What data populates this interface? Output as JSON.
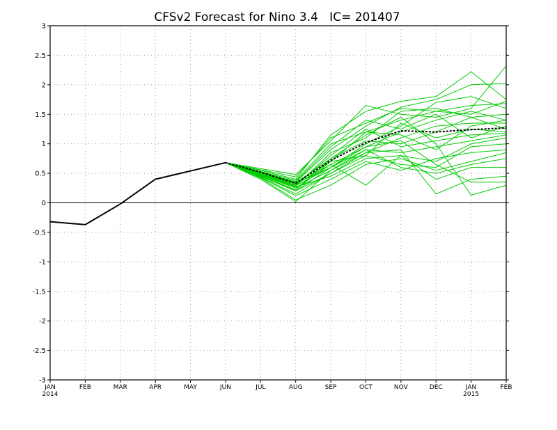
{
  "chart_data": {
    "type": "line",
    "title": "CFSv2 Forecast for Nino 3.4   IC= 201407",
    "xlabel": "",
    "ylabel": "",
    "categories": [
      "JAN",
      "FEB",
      "MAR",
      "APR",
      "MAY",
      "JUN",
      "JUL",
      "AUG",
      "SEP",
      "OCT",
      "NOV",
      "DEC",
      "JAN",
      "FEB"
    ],
    "year_labels": [
      {
        "index": 0,
        "label": "2014"
      },
      {
        "index": 12,
        "label": "2015"
      }
    ],
    "ylim": [
      -3,
      3
    ],
    "yticks": [
      "3",
      "2.5",
      "2",
      "1.5",
      "1",
      "0.5",
      "0",
      "-0.5",
      "-1",
      "-1.5",
      "-2",
      "-2.5",
      "-3"
    ],
    "ytick_values": [
      3,
      2.5,
      2,
      1.5,
      1,
      0.5,
      0,
      -0.5,
      -1,
      -1.5,
      -2,
      -2.5,
      -3
    ],
    "grid": true,
    "zero_line": true,
    "colors": {
      "observed": "#000000",
      "members": "#00cc00",
      "mean": "#000000",
      "grid": "#9a9a9a"
    },
    "observed": {
      "x": [
        0,
        1,
        2,
        3,
        4,
        5
      ],
      "values": [
        -0.32,
        -0.37,
        -0.02,
        0.4,
        0.54,
        0.68
      ]
    },
    "ensemble_mean": {
      "x": [
        5,
        6,
        7,
        8,
        9,
        10,
        11,
        12,
        13
      ],
      "values": [
        0.68,
        0.52,
        0.33,
        0.72,
        1.02,
        1.22,
        1.2,
        1.24,
        1.27
      ]
    },
    "ensemble_members": [
      {
        "x": [
          5,
          6,
          7,
          8,
          9,
          10,
          11,
          12,
          13
        ],
        "values": [
          0.68,
          0.55,
          0.4,
          1.15,
          1.55,
          1.72,
          1.8,
          2.22,
          1.75
        ]
      },
      {
        "x": [
          5,
          6,
          7,
          8,
          9,
          10,
          11,
          12,
          13
        ],
        "values": [
          0.68,
          0.58,
          0.48,
          1.05,
          1.65,
          1.5,
          1.45,
          1.6,
          2.32
        ]
      },
      {
        "x": [
          5,
          6,
          7,
          8,
          9,
          10,
          11,
          12,
          13
        ],
        "values": [
          0.68,
          0.52,
          0.35,
          0.9,
          1.3,
          1.62,
          1.75,
          2.0,
          2.02
        ]
      },
      {
        "x": [
          5,
          6,
          7,
          8,
          9,
          10,
          11,
          12,
          13
        ],
        "values": [
          0.68,
          0.5,
          0.3,
          0.7,
          1.2,
          1.4,
          1.55,
          1.5,
          1.72
        ]
      },
      {
        "x": [
          5,
          6,
          7,
          8,
          9,
          10,
          11,
          12,
          13
        ],
        "values": [
          0.68,
          0.45,
          0.2,
          0.6,
          1.0,
          1.3,
          1.7,
          1.8,
          1.6
        ]
      },
      {
        "x": [
          5,
          6,
          7,
          8,
          9,
          10,
          11,
          12,
          13
        ],
        "values": [
          0.68,
          0.48,
          0.28,
          0.85,
          1.1,
          1.55,
          1.6,
          1.45,
          1.5
        ]
      },
      {
        "x": [
          5,
          6,
          7,
          8,
          9,
          10,
          11,
          12,
          13
        ],
        "values": [
          0.68,
          0.5,
          0.32,
          0.65,
          0.95,
          1.2,
          1.4,
          1.55,
          1.4
        ]
      },
      {
        "x": [
          5,
          6,
          7,
          8,
          9,
          10,
          11,
          12,
          13
        ],
        "values": [
          0.68,
          0.47,
          0.25,
          0.55,
          0.85,
          1.1,
          1.3,
          1.35,
          1.35
        ]
      },
      {
        "x": [
          5,
          6,
          7,
          8,
          9,
          10,
          11,
          12,
          13
        ],
        "values": [
          0.68,
          0.52,
          0.36,
          0.95,
          1.4,
          1.25,
          1.5,
          1.1,
          1.3
        ]
      },
      {
        "x": [
          5,
          6,
          7,
          8,
          9,
          10,
          11,
          12,
          13
        ],
        "values": [
          0.68,
          0.46,
          0.22,
          0.75,
          1.05,
          1.0,
          1.2,
          1.45,
          1.25
        ]
      },
      {
        "x": [
          5,
          6,
          7,
          8,
          9,
          10,
          11,
          12,
          13
        ],
        "values": [
          0.68,
          0.44,
          0.15,
          0.5,
          0.8,
          1.35,
          1.1,
          1.25,
          1.2
        ]
      },
      {
        "x": [
          5,
          6,
          7,
          8,
          9,
          10,
          11,
          12,
          13
        ],
        "values": [
          0.68,
          0.49,
          0.3,
          0.8,
          1.25,
          0.95,
          1.05,
          1.15,
          1.18
        ]
      },
      {
        "x": [
          5,
          6,
          7,
          8,
          9,
          10,
          11,
          12,
          13
        ],
        "values": [
          0.68,
          0.5,
          0.33,
          0.6,
          0.9,
          0.85,
          0.95,
          1.05,
          1.15
        ]
      },
      {
        "x": [
          5,
          6,
          7,
          8,
          9,
          10,
          11,
          12,
          13
        ],
        "values": [
          0.68,
          0.47,
          0.27,
          0.45,
          0.75,
          0.8,
          0.7,
          1.0,
          1.1
        ]
      },
      {
        "x": [
          5,
          6,
          7,
          8,
          9,
          10,
          11,
          12,
          13
        ],
        "values": [
          0.68,
          0.45,
          0.22,
          0.7,
          0.8,
          0.65,
          0.6,
          0.95,
          1.0
        ]
      },
      {
        "x": [
          5,
          6,
          7,
          8,
          9,
          10,
          11,
          12,
          13
        ],
        "values": [
          0.68,
          0.43,
          0.12,
          0.4,
          0.7,
          0.55,
          0.75,
          0.85,
          0.9
        ]
      },
      {
        "x": [
          5,
          6,
          7,
          8,
          9,
          10,
          11,
          12,
          13
        ],
        "values": [
          0.68,
          0.42,
          0.05,
          0.3,
          0.65,
          0.75,
          0.55,
          0.7,
          0.85
        ]
      },
      {
        "x": [
          5,
          6,
          7,
          8,
          9,
          10,
          11,
          12,
          13
        ],
        "values": [
          0.68,
          0.4,
          0.02,
          0.55,
          0.9,
          0.6,
          0.5,
          0.65,
          0.75
        ]
      },
      {
        "x": [
          5,
          6,
          7,
          8,
          9,
          10,
          11,
          12,
          13
        ],
        "values": [
          0.68,
          0.48,
          0.25,
          0.65,
          0.3,
          0.8,
          0.4,
          0.6,
          0.6
        ]
      },
      {
        "x": [
          5,
          6,
          7,
          8,
          9,
          10,
          11,
          12,
          13
        ],
        "values": [
          0.68,
          0.46,
          0.2,
          0.5,
          0.85,
          0.9,
          0.15,
          0.4,
          0.45
        ]
      },
      {
        "x": [
          5,
          6,
          7,
          8,
          9,
          10,
          11,
          12,
          13
        ],
        "values": [
          0.68,
          0.49,
          0.29,
          0.6,
          0.95,
          1.05,
          0.65,
          0.35,
          0.35
        ]
      },
      {
        "x": [
          5,
          6,
          7,
          8,
          9,
          10,
          11,
          12,
          13
        ],
        "values": [
          0.68,
          0.51,
          0.34,
          0.75,
          1.15,
          1.45,
          1.0,
          0.13,
          0.3
        ]
      },
      {
        "x": [
          5,
          6,
          7,
          8,
          9,
          10,
          11,
          12,
          13
        ],
        "values": [
          0.68,
          0.53,
          0.38,
          1.0,
          1.2,
          1.15,
          0.9,
          1.3,
          1.4
        ]
      },
      {
        "x": [
          5,
          6,
          7,
          8,
          9,
          10,
          11,
          12,
          13
        ],
        "values": [
          0.68,
          0.56,
          0.44,
          1.1,
          1.35,
          1.6,
          1.55,
          1.65,
          1.68
        ]
      }
    ]
  }
}
